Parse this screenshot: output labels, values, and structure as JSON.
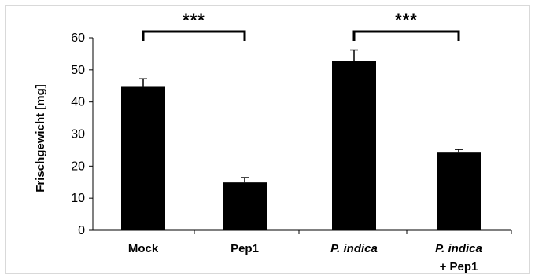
{
  "chart_data": {
    "type": "bar",
    "categories": [
      "Mock",
      "Pep1",
      "P. indica",
      "P. indica + Pep1"
    ],
    "category_labels": [
      {
        "line1": "Mock",
        "line2": "",
        "italic": false
      },
      {
        "line1": "Pep1",
        "line2": "",
        "italic": false
      },
      {
        "line1": "P. indica",
        "line2": "",
        "italic": true
      },
      {
        "line1": "P. indica",
        "line2": "+ Pep1",
        "italic": true
      }
    ],
    "values": [
      44.7,
      14.9,
      52.8,
      24.2
    ],
    "errors": [
      2.5,
      1.5,
      3.4,
      1.0
    ],
    "ylabel": "Frischgewicht [mg]",
    "xlabel": "",
    "title": "",
    "ylim": [
      0,
      60
    ],
    "yticks": [
      0,
      10,
      20,
      30,
      40,
      50,
      60
    ],
    "grid": false,
    "bar_color": "#000000",
    "significance": [
      {
        "from": 0,
        "to": 1,
        "label": "***"
      },
      {
        "from": 2,
        "to": 3,
        "label": "***"
      }
    ]
  }
}
